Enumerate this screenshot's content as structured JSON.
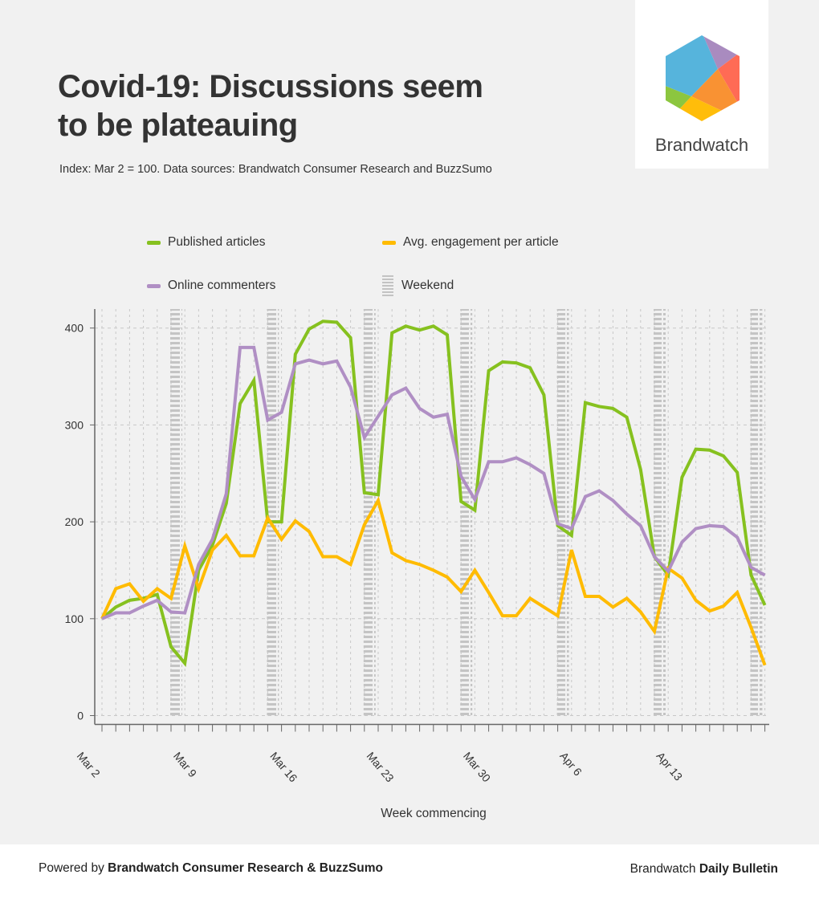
{
  "title": "Covid-19: Discussions seem to be plateauing",
  "subtitle": "Index: Mar 2 = 100. Data sources: Brandwatch Consumer Research and BuzzSumo",
  "logo": {
    "text": "Brandwatch"
  },
  "footer": {
    "left_prefix": "Powered by ",
    "left_bold": "Brandwatch Consumer Research & BuzzSumo",
    "right_prefix": "Brandwatch ",
    "right_bold": "Daily Bulletin"
  },
  "chart_data": {
    "type": "line",
    "xlabel": "Week commencing",
    "ylabel": "",
    "ylim": [
      0,
      400
    ],
    "yticks": [
      "0",
      "100",
      "200",
      "300",
      "400"
    ],
    "xtick_labels": [
      "Mar 2",
      "Mar 9",
      "Mar 16",
      "Mar 23",
      "Mar 30",
      "Apr 6",
      "Apr 13"
    ],
    "days": 49,
    "weekend_start_days": [
      5,
      12,
      19,
      26,
      33,
      40,
      47
    ],
    "grid": true,
    "legend": {
      "placement": "top",
      "published": "Published articles",
      "engagement": "Avg. engagement per article",
      "commenters": "Online commenters",
      "weekend": "Weekend"
    },
    "series": [
      {
        "name": "Published articles",
        "color": "#86c11f",
        "values": [
          100,
          112,
          119,
          121,
          125,
          71,
          54,
          150,
          176,
          219,
          322,
          346,
          200,
          200,
          373,
          399,
          407,
          406,
          390,
          230,
          228,
          395,
          402,
          398,
          402,
          393,
          221,
          212,
          356,
          365,
          364,
          359,
          331,
          196,
          186,
          323,
          319,
          317,
          308,
          254,
          164,
          145,
          246,
          275,
          274,
          268,
          251,
          145,
          114
        ]
      },
      {
        "name": "Avg. engagement per article",
        "color": "#ffbb00",
        "values": [
          100,
          131,
          136,
          118,
          131,
          121,
          175,
          131,
          171,
          186,
          165,
          165,
          204,
          182,
          201,
          190,
          164,
          164,
          156,
          197,
          222,
          168,
          160,
          156,
          150,
          143,
          128,
          150,
          127,
          103,
          103,
          121,
          112,
          103,
          171,
          123,
          123,
          112,
          121,
          107,
          87,
          152,
          142,
          119,
          108,
          113,
          127,
          91,
          52
        ]
      },
      {
        "name": "Online commenters",
        "color": "#b08fc4",
        "values": [
          100,
          106,
          106,
          113,
          119,
          107,
          106,
          156,
          182,
          229,
          380,
          380,
          305,
          313,
          363,
          367,
          363,
          366,
          339,
          287,
          309,
          331,
          338,
          317,
          308,
          311,
          247,
          223,
          262,
          262,
          266,
          259,
          250,
          198,
          193,
          226,
          232,
          222,
          208,
          196,
          164,
          149,
          179,
          193,
          196,
          195,
          184,
          153,
          145
        ]
      }
    ]
  }
}
